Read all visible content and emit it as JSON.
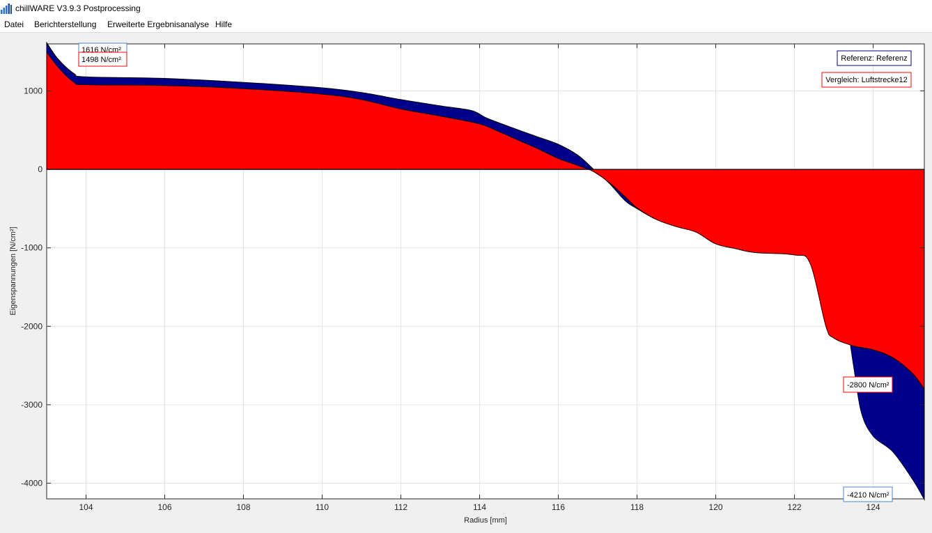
{
  "window": {
    "title": "chillWARE V3.9.3 Postprocessing"
  },
  "menu": {
    "items": [
      "Datei",
      "Berichterstellung",
      "Erweiterte Ergebnisanalyse",
      "Hilfe"
    ]
  },
  "chart_data": {
    "type": "area",
    "xlabel": "Radius [mm]",
    "ylabel": "Eigenspannungen [N/cm²]",
    "xlim": [
      103,
      125.3
    ],
    "ylim": [
      -4200,
      1600
    ],
    "x_ticks": [
      104,
      106,
      108,
      110,
      112,
      114,
      116,
      118,
      120,
      122,
      124
    ],
    "y_ticks": [
      -4000,
      -3000,
      -2000,
      -1000,
      0,
      1000
    ],
    "grid": true,
    "legend_position": "top-right",
    "legend": [
      "Referenz: Referenz",
      "Vergleich: Luftstrecke12"
    ],
    "colors": {
      "referenz": "#00008b",
      "vergleich": "#ff0000"
    },
    "series": [
      {
        "name": "Referenz: Referenz",
        "x": [
          103.0,
          103.3,
          103.7,
          104.0,
          106,
          108,
          110,
          111,
          112,
          113,
          113.8,
          114.2,
          115,
          115.5,
          116,
          116.5,
          116.9,
          117.3,
          117.7,
          118,
          118.5,
          119,
          119.3,
          119.7,
          120,
          121,
          122,
          122.6,
          123.0,
          123.2,
          123.5,
          123.7,
          124,
          124.5,
          125,
          125.3
        ],
        "y": [
          1616,
          1400,
          1220,
          1180,
          1160,
          1110,
          1040,
          980,
          890,
          810,
          750,
          650,
          500,
          410,
          320,
          180,
          0,
          -180,
          -400,
          -500,
          -640,
          -700,
          -730,
          -820,
          -880,
          -980,
          -1060,
          -1060,
          -1070,
          -1500,
          -2500,
          -3100,
          -3400,
          -3600,
          -3950,
          -4210
        ]
      },
      {
        "name": "Vergleich: Luftstrecke12",
        "x": [
          103.0,
          103.3,
          103.7,
          104.0,
          106,
          108,
          110,
          111,
          112,
          113,
          114,
          114.5,
          115,
          115.5,
          116,
          116.5,
          116.9,
          117.3,
          117.7,
          118,
          118.5,
          119,
          119.5,
          120,
          120.5,
          121,
          122,
          122.4,
          122.8,
          123,
          123.5,
          124,
          124.5,
          125,
          125.3
        ],
        "y": [
          1498,
          1300,
          1110,
          1080,
          1070,
          1030,
          960,
          890,
          770,
          680,
          580,
          480,
          370,
          260,
          140,
          50,
          -30,
          -170,
          -350,
          -490,
          -640,
          -730,
          -800,
          -950,
          -1010,
          -1060,
          -1090,
          -1200,
          -2000,
          -2150,
          -2250,
          -2300,
          -2400,
          -2600,
          -2800
        ]
      }
    ],
    "annotations": [
      "1616 N/cm²",
      "1498 N/cm²",
      "-2800 N/cm²",
      "-4210 N/cm²"
    ]
  }
}
